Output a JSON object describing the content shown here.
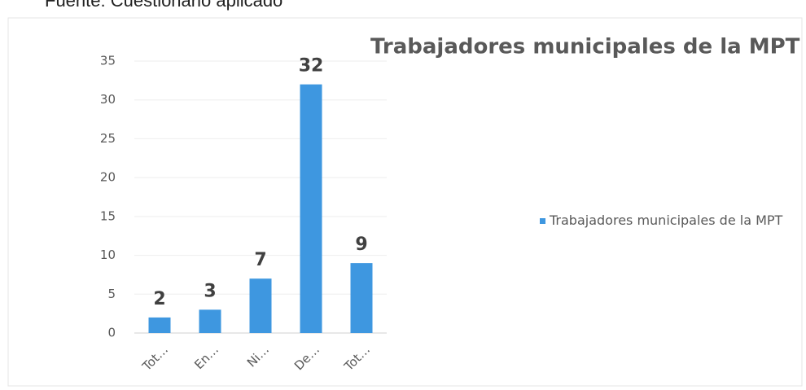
{
  "chart_data": {
    "type": "bar",
    "source": "Fuente: Cuestionario aplicado",
    "title": "Trabajadores municipales de la MPT",
    "categories": [
      "Tot…",
      "En…",
      "Ni…",
      "De…",
      "Tot…"
    ],
    "series": [
      {
        "name": "Trabajadores municipales de la MPT",
        "color": "#3e97e0",
        "values": [
          2,
          3,
          7,
          32,
          9
        ]
      }
    ],
    "ylim": [
      0,
      35
    ],
    "yticks": [
      0,
      5,
      10,
      15,
      20,
      25,
      30,
      35
    ],
    "grid": true,
    "legend": "right"
  }
}
